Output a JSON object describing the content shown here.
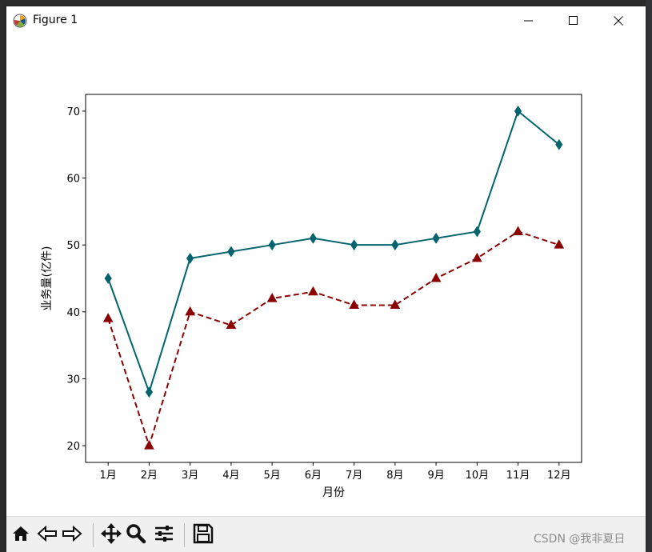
{
  "window": {
    "title": "Figure 1",
    "icon": "matplotlib-icon",
    "controls": [
      "minimize-icon",
      "maximize-icon",
      "close-icon"
    ]
  },
  "toolbar": {
    "tools": [
      "home-icon",
      "back-arrow-icon",
      "forward-arrow-icon",
      "pan-move-icon",
      "zoom-magnifier-icon",
      "configure-subplots-icon",
      "save-disk-icon"
    ]
  },
  "watermark": "CSDN @我非夏日",
  "colors": {
    "series1": "#00646e",
    "series2": "#8b0000"
  },
  "chart_data": {
    "type": "line",
    "title": "",
    "xlabel": "月份",
    "ylabel": "业务量(亿件)",
    "categories": [
      "1月",
      "2月",
      "3月",
      "4月",
      "5月",
      "6月",
      "7月",
      "8月",
      "9月",
      "10月",
      "11月",
      "12月"
    ],
    "yticks": [
      20,
      30,
      40,
      50,
      60,
      70
    ],
    "ylim": [
      17.5,
      72.5
    ],
    "grid": false,
    "legend": "none",
    "series": [
      {
        "values": [
          45,
          28,
          48,
          49,
          50,
          51,
          50,
          50,
          51,
          52,
          70,
          65
        ],
        "color": "#00646e",
        "linestyle": "solid",
        "marker": "diamond"
      },
      {
        "values": [
          39,
          20,
          40,
          38,
          42,
          43,
          41,
          41,
          45,
          48,
          52,
          50
        ],
        "color": "#8b0000",
        "linestyle": "dashed",
        "marker": "triangle"
      }
    ]
  }
}
